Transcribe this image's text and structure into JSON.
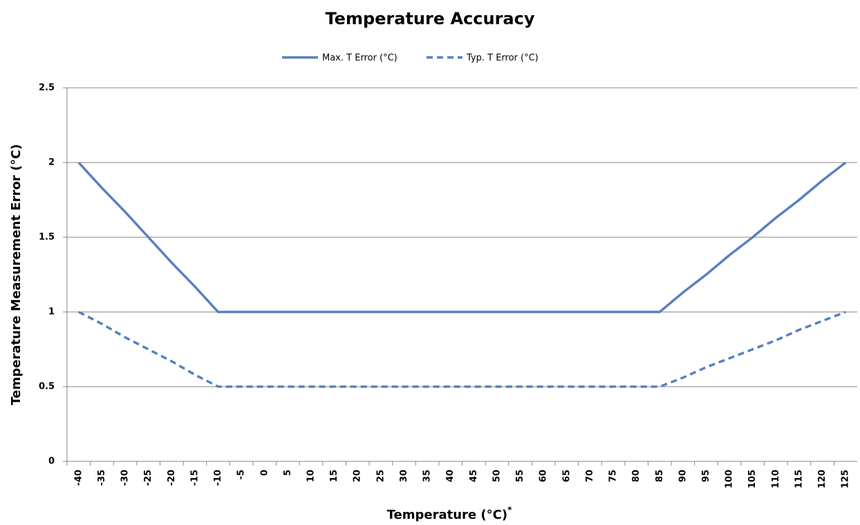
{
  "chart_data": {
    "type": "line",
    "title": "Temperature Accuracy",
    "xlabel": "Temperature (°C)",
    "xlabel_note": "*",
    "ylabel": "Temperature Measurement Error (°C)",
    "categories": [
      "-40",
      "-35",
      "-30",
      "-25",
      "-20",
      "-15",
      "-10",
      "-5",
      "0",
      "5",
      "10",
      "15",
      "20",
      "25",
      "30",
      "35",
      "40",
      "45",
      "50",
      "55",
      "60",
      "65",
      "70",
      "75",
      "80",
      "85",
      "90",
      "95",
      "100",
      "105",
      "110",
      "115",
      "120",
      "125"
    ],
    "series": [
      {
        "name": "Max. T Error (°C)",
        "color": "#5681bf",
        "dash": false,
        "values": [
          2,
          1.83,
          1.67,
          1.5,
          1.33,
          1.17,
          1,
          1,
          1,
          1,
          1,
          1,
          1,
          1,
          1,
          1,
          1,
          1,
          1,
          1,
          1,
          1,
          1,
          1,
          1,
          1,
          1.13,
          1.25,
          1.38,
          1.5,
          1.63,
          1.75,
          1.88,
          2
        ]
      },
      {
        "name": "Typ. T Error (°C)",
        "color": "#5681bf",
        "dash": true,
        "values": [
          1,
          0.92,
          0.83,
          0.75,
          0.67,
          0.58,
          0.5,
          0.5,
          0.5,
          0.5,
          0.5,
          0.5,
          0.5,
          0.5,
          0.5,
          0.5,
          0.5,
          0.5,
          0.5,
          0.5,
          0.5,
          0.5,
          0.5,
          0.5,
          0.5,
          0.5,
          0.56,
          0.63,
          0.69,
          0.75,
          0.81,
          0.88,
          0.94,
          1
        ]
      }
    ],
    "ylim": [
      0,
      2.5
    ],
    "yticks": [
      0,
      0.5,
      1,
      1.5,
      2,
      2.5
    ],
    "grid": true,
    "legend": "top"
  }
}
